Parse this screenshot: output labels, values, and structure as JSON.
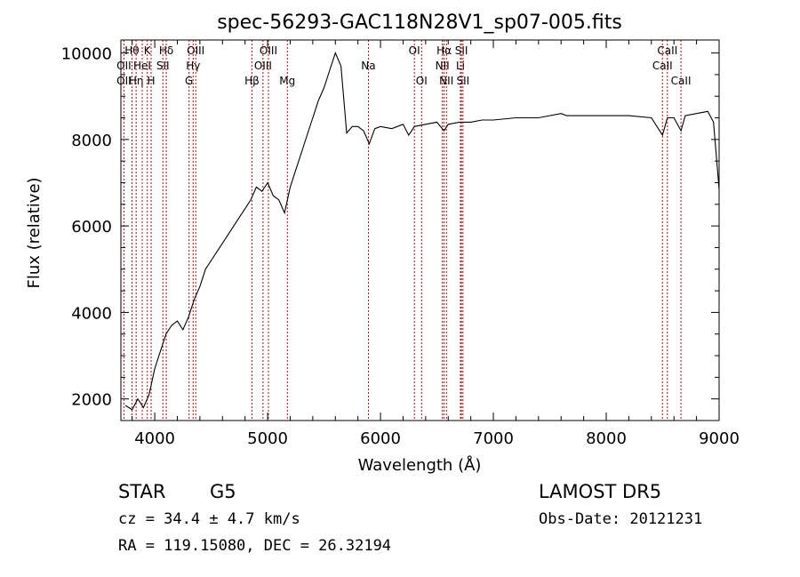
{
  "chart_data": {
    "type": "line",
    "title": "spec-56293-GAC118N28V1_sp07-005.fits",
    "xlabel": "Wavelength (Å)",
    "ylabel": "Flux (relative)",
    "xlim": [
      3700,
      9000
    ],
    "ylim": [
      1500,
      10300
    ],
    "xticks": [
      4000,
      5000,
      6000,
      7000,
      8000,
      9000
    ],
    "yticks": [
      2000,
      4000,
      6000,
      8000,
      10000
    ],
    "grid": false,
    "line_color": "#000000",
    "marker_line_color": "#cc0000",
    "series": [
      {
        "x": [
          3740,
          3800,
          3850,
          3900,
          3950,
          4000,
          4050,
          4100,
          4150,
          4200,
          4250,
          4300,
          4350,
          4400,
          4450,
          4500,
          4550,
          4600,
          4650,
          4700,
          4750,
          4800,
          4850,
          4900,
          4950,
          5000,
          5050,
          5100,
          5150,
          5200,
          5250,
          5300,
          5350,
          5400,
          5450,
          5500,
          5550,
          5600,
          5650,
          5700,
          5750,
          5800,
          5850,
          5900,
          5950,
          6000,
          6100,
          6200,
          6250,
          6300,
          6400,
          6500,
          6563,
          6600,
          6700,
          6800,
          6900,
          7000,
          7200,
          7400,
          7600,
          7650,
          7800,
          8000,
          8200,
          8400,
          8498,
          8542,
          8600,
          8662,
          8700,
          8800,
          8900,
          8950,
          9000
        ],
        "y": [
          1850,
          1750,
          2000,
          1800,
          2100,
          2700,
          3100,
          3500,
          3700,
          3800,
          3600,
          3900,
          4300,
          4600,
          5000,
          5200,
          5400,
          5600,
          5800,
          6000,
          6200,
          6400,
          6600,
          6900,
          6800,
          7000,
          6700,
          6600,
          6300,
          6900,
          7300,
          7700,
          8100,
          8500,
          8900,
          9200,
          9600,
          10000,
          9700,
          8150,
          8300,
          8300,
          8200,
          7900,
          8250,
          8300,
          8250,
          8350,
          8100,
          8300,
          8350,
          8400,
          8200,
          8350,
          8400,
          8400,
          8450,
          8450,
          8500,
          8500,
          8600,
          8550,
          8550,
          8550,
          8550,
          8500,
          8100,
          8500,
          8500,
          8200,
          8550,
          8600,
          8650,
          8400,
          6850
        ]
      }
    ],
    "line_markers": [
      {
        "label": "Hθ",
        "wavelength": 3798,
        "row": 1
      },
      {
        "label": "OII",
        "wavelength": 3727,
        "row": 2
      },
      {
        "label": "OII",
        "wavelength": 3727,
        "row": 3
      },
      {
        "label": "Hη",
        "wavelength": 3835,
        "row": 3
      },
      {
        "label": "K",
        "wavelength": 3934,
        "row": 1
      },
      {
        "label": "HeI",
        "wavelength": 3889,
        "row": 2
      },
      {
        "label": "H",
        "wavelength": 3968,
        "row": 3
      },
      {
        "label": "Hδ",
        "wavelength": 4102,
        "row": 1
      },
      {
        "label": "SII",
        "wavelength": 4072,
        "row": 2
      },
      {
        "label": "OIII",
        "wavelength": 4363,
        "row": 1
      },
      {
        "label": "Hγ",
        "wavelength": 4340,
        "row": 2
      },
      {
        "label": "G",
        "wavelength": 4304,
        "row": 3
      },
      {
        "label": "Hβ",
        "wavelength": 4861,
        "row": 3
      },
      {
        "label": "OIII",
        "wavelength": 5007,
        "row": 1
      },
      {
        "label": "OIII",
        "wavelength": 4959,
        "row": 2
      },
      {
        "label": "Mg",
        "wavelength": 5175,
        "row": 3
      },
      {
        "label": "Na",
        "wavelength": 5893,
        "row": 2
      },
      {
        "label": "OI",
        "wavelength": 6300,
        "row": 1
      },
      {
        "label": "OI",
        "wavelength": 6364,
        "row": 3
      },
      {
        "label": "Hα",
        "wavelength": 6563,
        "row": 1
      },
      {
        "label": "SII",
        "wavelength": 6717,
        "row": 1
      },
      {
        "label": "NII",
        "wavelength": 6548,
        "row": 2
      },
      {
        "label": "Li",
        "wavelength": 6708,
        "row": 2
      },
      {
        "label": "NII",
        "wavelength": 6584,
        "row": 3
      },
      {
        "label": "SII",
        "wavelength": 6731,
        "row": 3
      },
      {
        "label": "CaII",
        "wavelength": 8542,
        "row": 1
      },
      {
        "label": "CaII",
        "wavelength": 8498,
        "row": 2
      },
      {
        "label": "CaII",
        "wavelength": 8662,
        "row": 3
      }
    ]
  },
  "info": {
    "object_class": "STAR",
    "subclass": "G5",
    "survey": "LAMOST DR5",
    "redshift_line": "cz = 34.4 ± 4.7 km/s",
    "obs_date_line": "Obs-Date: 20121231",
    "coords_line": "RA = 119.15080, DEC =  26.32194"
  }
}
